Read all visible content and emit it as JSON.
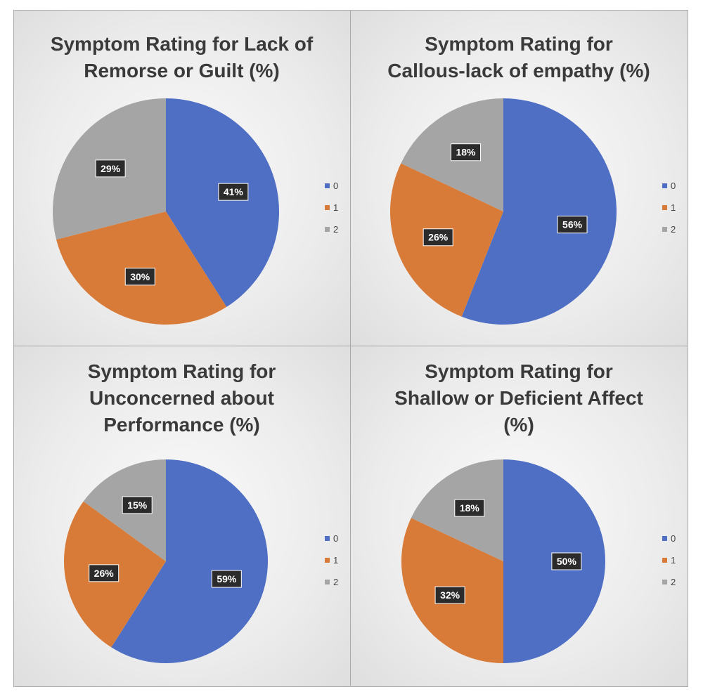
{
  "chart_data": [
    {
      "type": "pie",
      "title": "Symptom Rating for Lack of\nRemorse or Guilt (%)",
      "categories": [
        "0",
        "1",
        "2"
      ],
      "values": [
        41,
        30,
        29
      ],
      "labels": [
        "41%",
        "30%",
        "29%"
      ],
      "legend": [
        "0",
        "1",
        "2"
      ],
      "legend_position": "right"
    },
    {
      "type": "pie",
      "title": "Symptom Rating for\nCallous-lack of empathy (%)",
      "categories": [
        "0",
        "1",
        "2"
      ],
      "values": [
        56,
        26,
        18
      ],
      "labels": [
        "56%",
        "26%",
        "18%"
      ],
      "legend": [
        "0",
        "1",
        "2"
      ],
      "legend_position": "right"
    },
    {
      "type": "pie",
      "title": "Symptom Rating for\nUnconcerned about\nPerformance (%)",
      "categories": [
        "0",
        "1",
        "2"
      ],
      "values": [
        59,
        26,
        15
      ],
      "labels": [
        "59%",
        "26%",
        "15%"
      ],
      "legend": [
        "0",
        "1",
        "2"
      ],
      "legend_position": "right"
    },
    {
      "type": "pie",
      "title": "Symptom Rating for\nShallow or Deficient Affect\n(%)",
      "categories": [
        "0",
        "1",
        "2"
      ],
      "values": [
        50,
        32,
        18
      ],
      "labels": [
        "50%",
        "32%",
        "18%"
      ],
      "legend": [
        "0",
        "1",
        "2"
      ],
      "legend_position": "right"
    }
  ],
  "colors": [
    "#4f6fc4",
    "#d97b38",
    "#a5a5a5"
  ]
}
